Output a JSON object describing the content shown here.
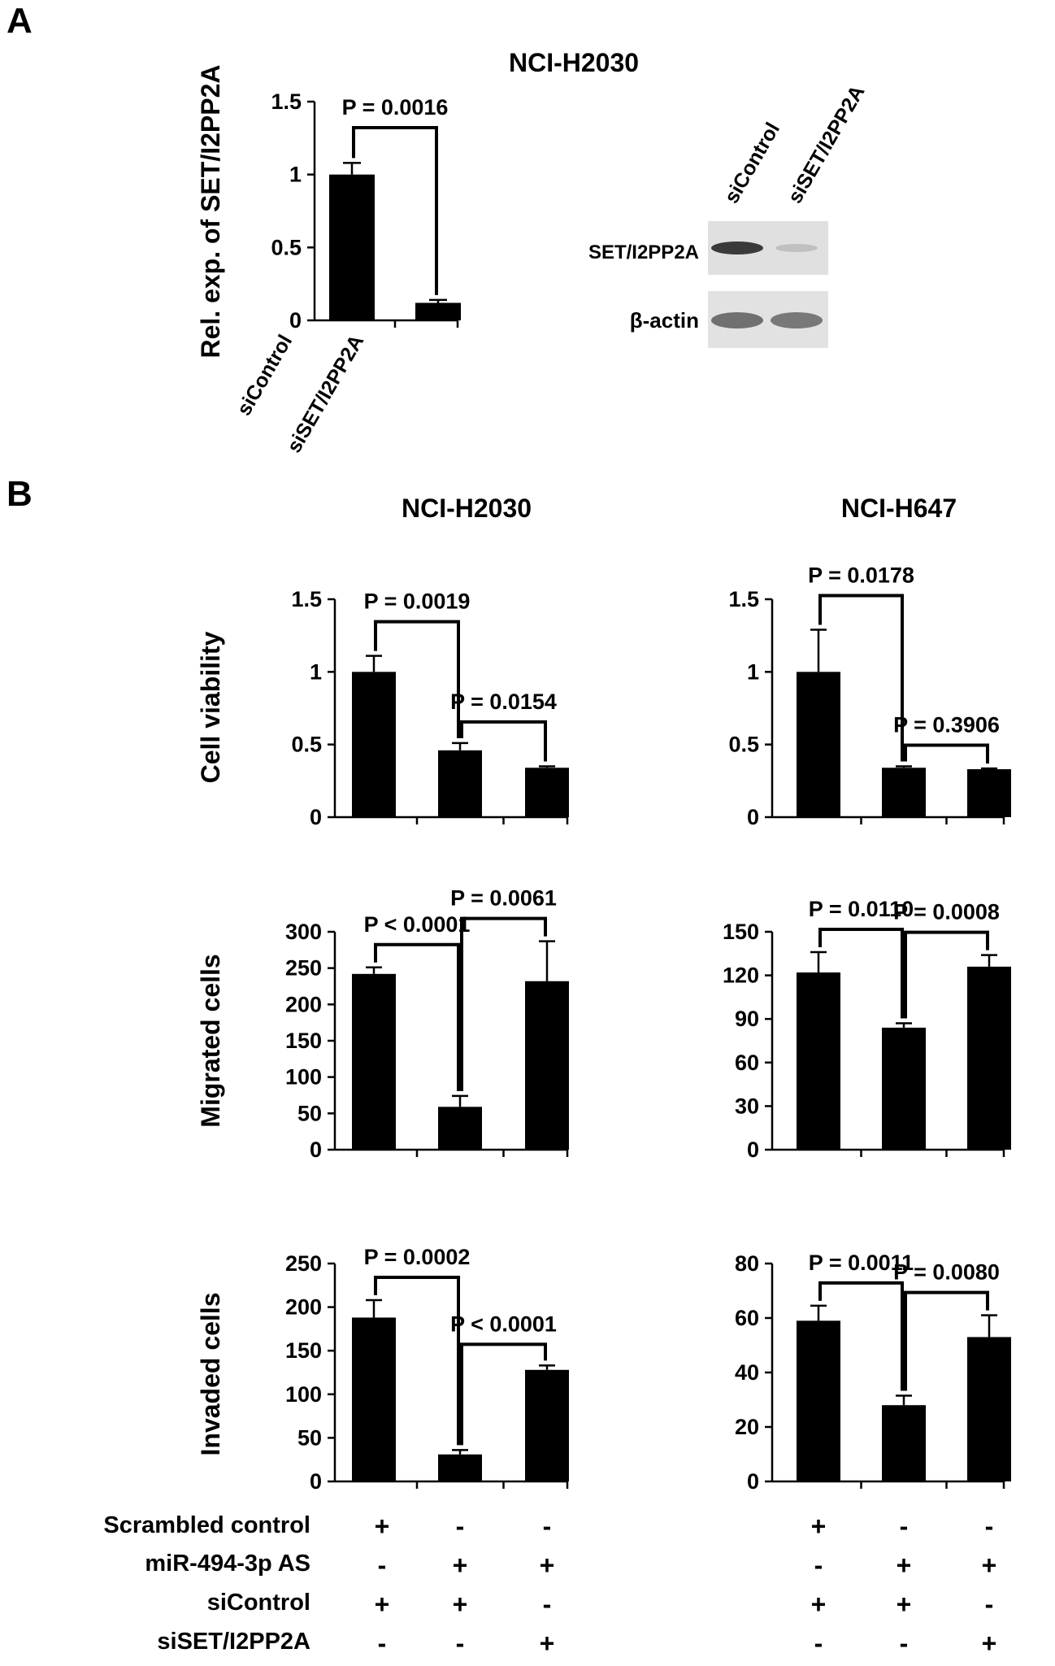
{
  "panels": {
    "a": "A",
    "b": "B"
  },
  "panel_a": {
    "title": "NCI-H2030",
    "blot": {
      "lanes": [
        "siControl",
        "siSET/I2PP2A"
      ],
      "rows": [
        "SET/I2PP2A",
        "β-actin"
      ]
    }
  },
  "panel_b": {
    "titles": [
      "NCI-H2030",
      "NCI-H647"
    ],
    "conditions": {
      "labels": [
        "Scrambled control",
        "miR-494-3p AS",
        "siControl",
        "siSET/I2PP2A"
      ],
      "signs": [
        [
          "+",
          "-",
          "-"
        ],
        [
          "-",
          "+",
          "+"
        ],
        [
          "+",
          "+",
          "-"
        ],
        [
          "-",
          "-",
          "+"
        ]
      ]
    }
  },
  "chart_data": [
    {
      "id": "a-qpcr",
      "type": "bar",
      "title": "NCI-H2030",
      "ylabel": "Rel. exp. of SET/I2PP2A",
      "categories": [
        "siControl",
        "siSET/I2PP2A"
      ],
      "values": [
        1.0,
        0.12
      ],
      "errors": [
        0.08,
        0.02
      ],
      "ylim": [
        0,
        1.5
      ],
      "yticks": [
        0,
        0.5,
        1,
        1.5
      ],
      "ytick_labels": [
        "0",
        "0.5",
        "1",
        "1.5"
      ],
      "comparisons": [
        {
          "from": 0,
          "to": 1,
          "label": "P = 0.0016"
        }
      ]
    },
    {
      "id": "b-viability-h2030",
      "type": "bar",
      "ylabel": "Cell viability",
      "values": [
        1.0,
        0.46,
        0.34
      ],
      "errors": [
        0.11,
        0.05,
        0.01
      ],
      "ylim": [
        0,
        1.5
      ],
      "yticks": [
        0,
        0.5,
        1,
        1.5
      ],
      "ytick_labels": [
        "0",
        "0.5",
        "1",
        "1.5"
      ],
      "comparisons": [
        {
          "from": 0,
          "to": 1,
          "label": "P = 0.0019"
        },
        {
          "from": 1,
          "to": 2,
          "label": "P = 0.0154"
        }
      ]
    },
    {
      "id": "b-viability-h647",
      "type": "bar",
      "values": [
        1.0,
        0.34,
        0.33
      ],
      "errors": [
        0.29,
        0.01,
        0.005
      ],
      "ylim": [
        0,
        1.5
      ],
      "yticks": [
        0,
        0.5,
        1,
        1.5
      ],
      "ytick_labels": [
        "0",
        "0.5",
        "1",
        "1.5"
      ],
      "comparisons": [
        {
          "from": 0,
          "to": 1,
          "label": "P = 0.0178"
        },
        {
          "from": 1,
          "to": 2,
          "label": "P = 0.3906"
        }
      ]
    },
    {
      "id": "b-migration-h2030",
      "type": "bar",
      "ylabel": "Migrated cells",
      "values": [
        242,
        59,
        232
      ],
      "errors": [
        9,
        15,
        55
      ],
      "ylim": [
        0,
        300
      ],
      "yticks": [
        0,
        50,
        100,
        150,
        200,
        250,
        300
      ],
      "ytick_labels": [
        "0",
        "50",
        "100",
        "150",
        "200",
        "250",
        "300"
      ],
      "comparisons": [
        {
          "from": 0,
          "to": 1,
          "label": "P < 0.0001"
        },
        {
          "from": 1,
          "to": 2,
          "label": "P = 0.0061"
        }
      ]
    },
    {
      "id": "b-migration-h647",
      "type": "bar",
      "values": [
        122,
        84,
        126
      ],
      "errors": [
        14,
        3,
        8
      ],
      "ylim": [
        0,
        150
      ],
      "yticks": [
        0,
        30,
        60,
        90,
        120,
        150
      ],
      "ytick_labels": [
        "0",
        "30",
        "60",
        "90",
        "120",
        "150"
      ],
      "comparisons": [
        {
          "from": 0,
          "to": 1,
          "label": "P = 0.0110"
        },
        {
          "from": 1,
          "to": 2,
          "label": "P = 0.0008"
        }
      ]
    },
    {
      "id": "b-invasion-h2030",
      "type": "bar",
      "ylabel": "Invaded cells",
      "values": [
        188,
        31,
        128
      ],
      "errors": [
        20,
        5,
        5
      ],
      "ylim": [
        0,
        250
      ],
      "yticks": [
        0,
        50,
        100,
        150,
        200,
        250
      ],
      "ytick_labels": [
        "0",
        "50",
        "100",
        "150",
        "200",
        "250"
      ],
      "comparisons": [
        {
          "from": 0,
          "to": 1,
          "label": "P = 0.0002"
        },
        {
          "from": 1,
          "to": 2,
          "label": "P < 0.0001"
        }
      ]
    },
    {
      "id": "b-invasion-h647",
      "type": "bar",
      "values": [
        59,
        28,
        53
      ],
      "errors": [
        5.5,
        3.5,
        8
      ],
      "ylim": [
        0,
        80
      ],
      "yticks": [
        0,
        20,
        40,
        60,
        80
      ],
      "ytick_labels": [
        "0",
        "20",
        "40",
        "60",
        "80"
      ],
      "comparisons": [
        {
          "from": 0,
          "to": 1,
          "label": "P = 0.0011"
        },
        {
          "from": 1,
          "to": 2,
          "label": "P = 0.0080"
        }
      ]
    }
  ]
}
